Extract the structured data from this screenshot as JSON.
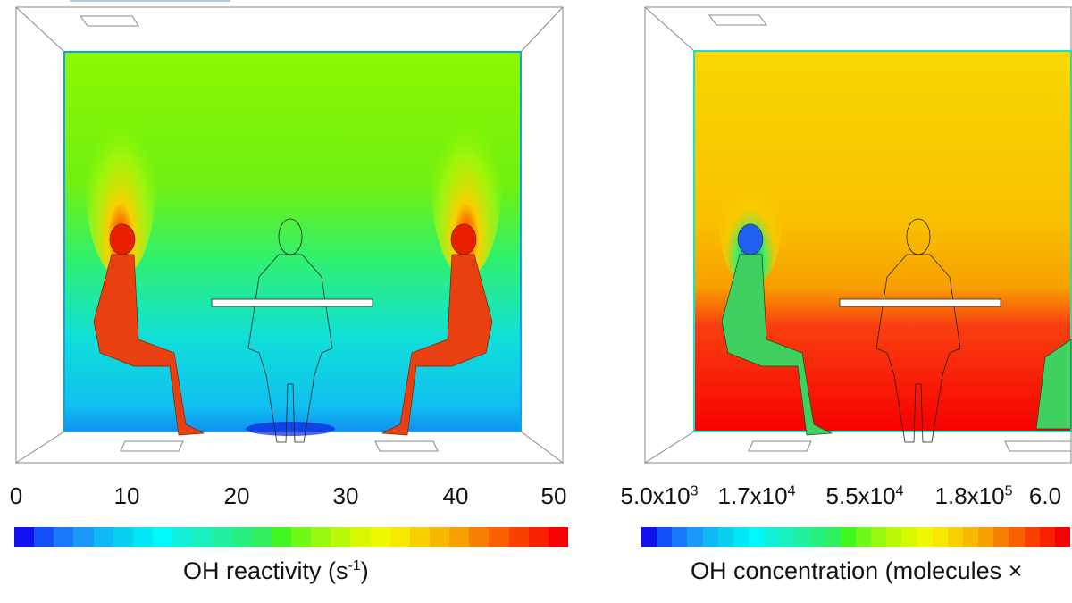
{
  "left_panel": {
    "colorbar_title": "OH reactivity (s",
    "colorbar_title_sup": "-1",
    "colorbar_title_end": ")",
    "ticks": [
      "0",
      "10",
      "20",
      "30",
      "40",
      "50"
    ]
  },
  "right_panel": {
    "colorbar_title": "OH concentration (molecules ×",
    "ticks": [
      {
        "base": "5.0x10",
        "exp": "3"
      },
      {
        "base": "1.7x10",
        "exp": "4"
      },
      {
        "base": "5.5x10",
        "exp": "4"
      },
      {
        "base": "1.8x10",
        "exp": "5"
      },
      {
        "base": "6.0",
        "exp": ""
      }
    ]
  },
  "colormap": [
    "#1010f0",
    "#1450f8",
    "#1878f8",
    "#1c98f8",
    "#10b8f8",
    "#08d0f0",
    "#00e8f8",
    "#00f8f8",
    "#10f0d8",
    "#18f0c0",
    "#20f0a0",
    "#28f080",
    "#30f060",
    "#40f820",
    "#70f818",
    "#98f810",
    "#b8f808",
    "#d8f800",
    "#f0f800",
    "#f8e800",
    "#f8d000",
    "#f8b800",
    "#f8a000",
    "#f88000",
    "#f86000",
    "#f84000",
    "#f82000",
    "#f80000"
  ]
}
